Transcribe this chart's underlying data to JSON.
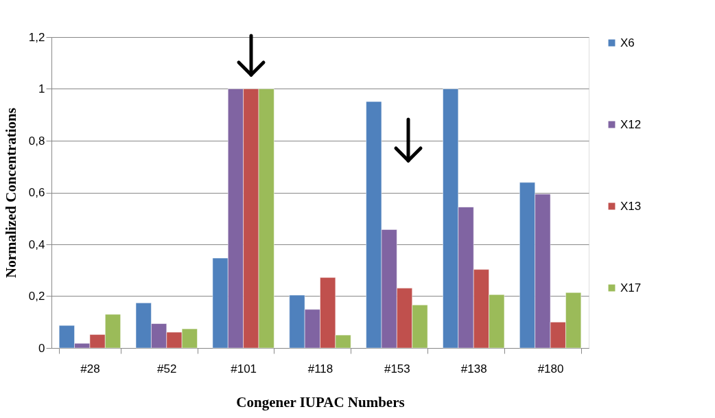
{
  "chart_data": {
    "type": "bar",
    "xlabel": "Congener IUPAC Numbers",
    "ylabel": "Normalized Concentrations",
    "categories": [
      "#28",
      "#52",
      "#101",
      "#118",
      "#153",
      "#138",
      "#180"
    ],
    "series": [
      {
        "name": "X6",
        "color": "#4f81bd",
        "values": [
          0.087,
          0.174,
          0.347,
          0.204,
          0.951,
          1.0,
          0.639
        ]
      },
      {
        "name": "X12",
        "color": "#8064a2",
        "values": [
          0.018,
          0.094,
          1.0,
          0.149,
          0.457,
          0.544,
          0.594
        ]
      },
      {
        "name": "X13",
        "color": "#c0504d",
        "values": [
          0.052,
          0.061,
          1.0,
          0.272,
          0.231,
          0.303,
          0.1
        ]
      },
      {
        "name": "X17",
        "color": "#9bbb59",
        "values": [
          0.13,
          0.074,
          1.0,
          0.05,
          0.166,
          0.206,
          0.214
        ]
      }
    ],
    "ylim": [
      0,
      1.2
    ],
    "yticks": [
      0,
      {
        "value": 0.2,
        "label": "0,2"
      },
      {
        "value": 0.4,
        "label": "0,4"
      },
      {
        "value": 0.6,
        "label": "0,6"
      },
      {
        "value": 0.8,
        "label": "0,8"
      },
      1,
      {
        "value": 1.2,
        "label": "1,2"
      }
    ],
    "grid": "y",
    "legend": "right"
  }
}
